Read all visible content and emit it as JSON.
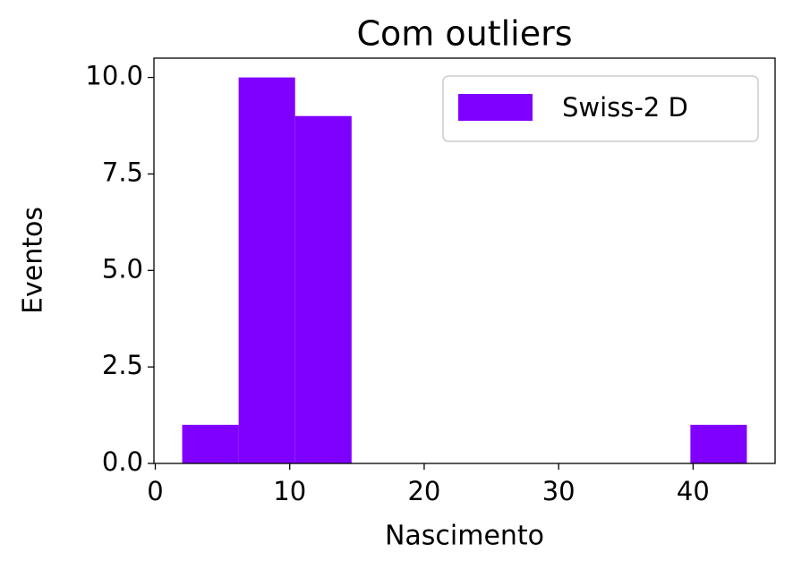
{
  "chart_data": {
    "type": "histogram",
    "title": "Com outliers",
    "x_label": "Nascimento",
    "y_label": "Eventos",
    "bins": [
      2,
      6.2,
      10.4,
      14.6,
      18.8,
      23,
      27.2,
      31.4,
      35.6,
      39.8,
      44
    ],
    "series": [
      {
        "name": "Swiss-2 D",
        "color": "#8000ff",
        "values": [
          1,
          10,
          9,
          0,
          0,
          0,
          0,
          0,
          0,
          1
        ]
      }
    ],
    "xlim": [
      -0.1,
      46.1
    ],
    "xticks": [
      0,
      10,
      20,
      30,
      40
    ],
    "ylim": [
      0,
      10.5
    ],
    "yticks": [
      {
        "value": 0,
        "label": "0.0"
      },
      2.5,
      {
        "value": 5,
        "label": "5.0"
      },
      7.5,
      {
        "value": 10,
        "label": "10.0"
      }
    ],
    "legend": "upper right"
  }
}
